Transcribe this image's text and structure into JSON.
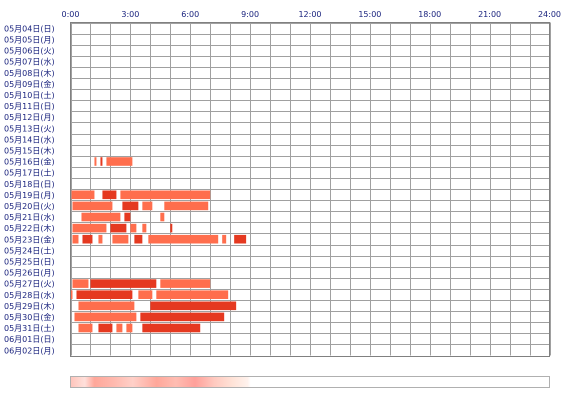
{
  "chart_data": {
    "type": "heatmap",
    "title": "",
    "x_unit": "hours",
    "x_range": [
      0,
      24
    ],
    "hour_labels": [
      "0:00",
      "3:00",
      "6:00",
      "9:00",
      "12:00",
      "15:00",
      "18:00",
      "21:00",
      "24:00"
    ],
    "bar_color": "#ff6e4d",
    "bar_color_dark": "#e53920",
    "days": [
      {
        "label": "05月04日(日)",
        "segments": []
      },
      {
        "label": "05月05日(月)",
        "segments": []
      },
      {
        "label": "05月06日(火)",
        "segments": []
      },
      {
        "label": "05月07日(水)",
        "segments": []
      },
      {
        "label": "05月08日(木)",
        "segments": []
      },
      {
        "label": "05月09日(金)",
        "segments": []
      },
      {
        "label": "05月10日(土)",
        "segments": []
      },
      {
        "label": "05月11日(日)",
        "segments": []
      },
      {
        "label": "05月12日(月)",
        "segments": []
      },
      {
        "label": "05月13日(火)",
        "segments": []
      },
      {
        "label": "05月14日(水)",
        "segments": []
      },
      {
        "label": "05月15日(木)",
        "segments": []
      },
      {
        "label": "05月16日(金)",
        "segments": [
          [
            1.2,
            1.3
          ],
          [
            1.5,
            1.6
          ],
          [
            1.8,
            3.1
          ]
        ]
      },
      {
        "label": "05月17日(土)",
        "segments": []
      },
      {
        "label": "05月18日(日)",
        "segments": []
      },
      {
        "label": "05月19日(月)",
        "segments": [
          [
            0.05,
            1.2
          ],
          [
            1.6,
            2.3
          ],
          [
            2.5,
            7.0
          ]
        ]
      },
      {
        "label": "05月20日(火)",
        "segments": [
          [
            0.1,
            2.1
          ],
          [
            2.6,
            3.4
          ],
          [
            3.6,
            4.1
          ],
          [
            4.7,
            6.9
          ]
        ]
      },
      {
        "label": "05月21日(水)",
        "segments": [
          [
            0.55,
            2.5
          ],
          [
            2.7,
            3.0
          ],
          [
            4.5,
            4.7
          ]
        ]
      },
      {
        "label": "05月22日(木)",
        "segments": [
          [
            0.1,
            1.8
          ],
          [
            2.0,
            2.8
          ],
          [
            3.0,
            3.3
          ],
          [
            3.6,
            3.8
          ],
          [
            5.0,
            5.1
          ]
        ]
      },
      {
        "label": "05月23日(金)",
        "segments": [
          [
            0.1,
            0.4
          ],
          [
            0.6,
            1.1
          ],
          [
            1.4,
            1.6
          ],
          [
            2.1,
            2.9
          ],
          [
            3.2,
            3.6
          ],
          [
            3.9,
            7.4
          ],
          [
            7.6,
            7.8
          ],
          [
            8.2,
            8.8
          ]
        ]
      },
      {
        "label": "05月24日(土)",
        "segments": []
      },
      {
        "label": "05月25日(日)",
        "segments": []
      },
      {
        "label": "05月26日(月)",
        "segments": []
      },
      {
        "label": "05月27日(火)",
        "segments": [
          [
            0.1,
            0.9
          ],
          [
            1.0,
            4.3
          ],
          [
            4.5,
            7.0
          ]
        ]
      },
      {
        "label": "05月28日(水)",
        "segments": [
          [
            0.0,
            0.1
          ],
          [
            0.3,
            3.1
          ],
          [
            3.4,
            4.1
          ],
          [
            4.3,
            7.9
          ]
        ]
      },
      {
        "label": "05月29日(木)",
        "segments": [
          [
            0.4,
            3.2
          ],
          [
            4.0,
            8.3
          ]
        ]
      },
      {
        "label": "05月30日(金)",
        "segments": [
          [
            0.2,
            3.3
          ],
          [
            3.5,
            7.7
          ]
        ]
      },
      {
        "label": "05月31日(土)",
        "segments": [
          [
            0.4,
            1.1
          ],
          [
            1.4,
            2.1
          ],
          [
            2.3,
            2.6
          ],
          [
            2.8,
            3.1
          ],
          [
            3.6,
            6.5
          ]
        ]
      },
      {
        "label": "06月01日(日)",
        "segments": []
      },
      {
        "label": "06月02日(月)",
        "segments": []
      }
    ],
    "summary_gradient": {
      "description": "aggregate heat strip",
      "peak_range": [
        0.0,
        9.0
      ]
    }
  }
}
